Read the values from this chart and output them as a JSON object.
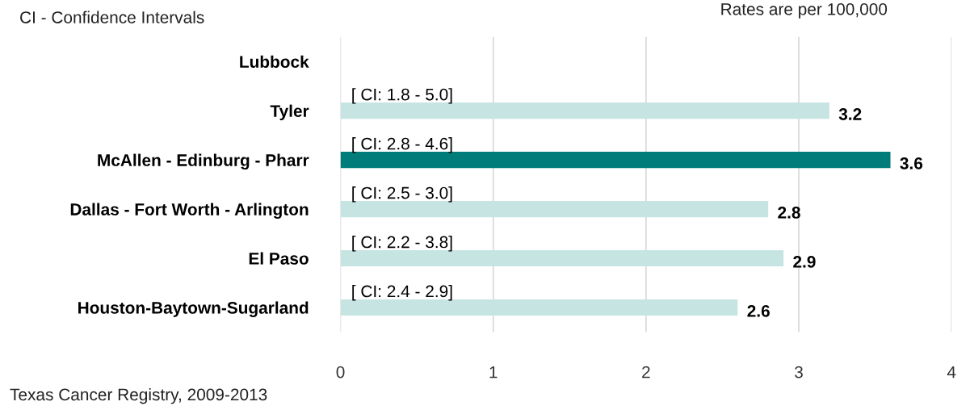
{
  "chart_data": {
    "type": "bar",
    "orientation": "horizontal",
    "categories": [
      "Lubbock",
      "Tyler",
      "McAllen - Edinburg - Pharr",
      "Dallas - Fort Worth - Arlington",
      "El Paso",
      "Houston-Baytown-Sugarland"
    ],
    "values": [
      null,
      3.2,
      3.6,
      2.8,
      2.9,
      2.6
    ],
    "colors": [
      "#c6e4e2",
      "#c6e4e2",
      "#007c7a",
      "#c6e4e2",
      "#c6e4e2",
      "#c6e4e2"
    ],
    "data_labels": true,
    "xlim": [
      0,
      4
    ],
    "xticks": [
      0,
      1,
      2,
      3,
      4
    ],
    "grid": "x",
    "annotations": [
      "CI - Confidence Intervals",
      "Rates are per 100,000",
      "Texas Cancer Registry, 2009-2013",
      "[ CI: 1.8 - 5.0]",
      "[ CI: 2.8 - 4.6]",
      "[ CI: 2.5 - 3.0]",
      "[ CI: 2.2 - 3.8]",
      "[ CI: 2.4 - 2.9]"
    ]
  }
}
